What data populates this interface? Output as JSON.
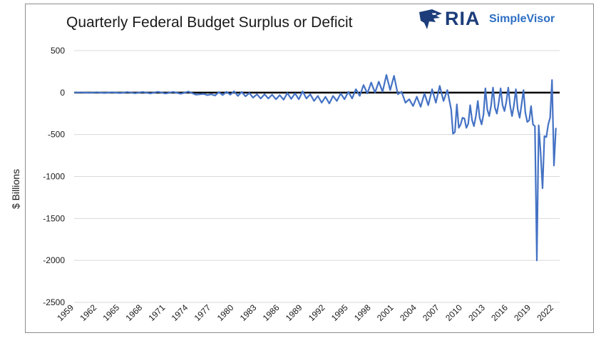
{
  "title": "Quarterly Federal Budget Surplus or Deficit",
  "logo": {
    "brand": "RIA",
    "product": "SimpleVisor",
    "icon": "eagle-head-icon"
  },
  "colors": {
    "series": "#4472C4",
    "zero_line": "#000000",
    "grid": "#d9d9d9",
    "brand": "#1c3d7a",
    "brand_product": "#2e6fc4"
  },
  "chart_data": {
    "type": "line",
    "title": "Quarterly Federal Budget Surplus or Deficit",
    "xlabel": "",
    "ylabel": "$ Billions",
    "ylim": [
      -2500,
      500
    ],
    "xlim": [
      1959,
      2022.75
    ],
    "yticks": [
      "500",
      "0",
      "-500",
      "-1000",
      "-1500",
      "-2000",
      "-2500"
    ],
    "xticks": [
      "1959",
      "1962",
      "1965",
      "1968",
      "1971",
      "1974",
      "1977",
      "1980",
      "1983",
      "1986",
      "1989",
      "1992",
      "1995",
      "1998",
      "2001",
      "2004",
      "2007",
      "2010",
      "2013",
      "2016",
      "2019",
      "2022"
    ],
    "grid": true,
    "legend": "none",
    "series": [
      {
        "points": [
          [
            1959,
            0
          ],
          [
            1960,
            3
          ],
          [
            1961,
            -3
          ],
          [
            1962,
            4
          ],
          [
            1963,
            -5
          ],
          [
            1964,
            4
          ],
          [
            1965,
            -6
          ],
          [
            1966,
            6
          ],
          [
            1967,
            -8
          ],
          [
            1968,
            8
          ],
          [
            1969,
            -10
          ],
          [
            1970,
            10
          ],
          [
            1971,
            -12
          ],
          [
            1972,
            9
          ],
          [
            1973,
            -14
          ],
          [
            1974,
            12
          ],
          [
            1975,
            -25
          ],
          [
            1976,
            -15
          ],
          [
            1976.5,
            -30
          ],
          [
            1977,
            -20
          ],
          [
            1977.5,
            -35
          ],
          [
            1978,
            5
          ],
          [
            1978.5,
            -30
          ],
          [
            1979,
            10
          ],
          [
            1979.5,
            -25
          ],
          [
            1980,
            15
          ],
          [
            1980.5,
            -40
          ],
          [
            1981,
            8
          ],
          [
            1981.5,
            -45
          ],
          [
            1982,
            -5
          ],
          [
            1982.5,
            -60
          ],
          [
            1983,
            -20
          ],
          [
            1983.5,
            -70
          ],
          [
            1984,
            -20
          ],
          [
            1984.5,
            -70
          ],
          [
            1985,
            -25
          ],
          [
            1985.5,
            -80
          ],
          [
            1986,
            -30
          ],
          [
            1986.5,
            -85
          ],
          [
            1987,
            -5
          ],
          [
            1987.5,
            -75
          ],
          [
            1988,
            -10
          ],
          [
            1988.5,
            -80
          ],
          [
            1989,
            15
          ],
          [
            1989.5,
            -70
          ],
          [
            1990,
            -20
          ],
          [
            1990.5,
            -100
          ],
          [
            1991,
            -40
          ],
          [
            1991.5,
            -120
          ],
          [
            1992,
            -50
          ],
          [
            1992.5,
            -130
          ],
          [
            1993,
            -40
          ],
          [
            1993.5,
            -100
          ],
          [
            1994,
            -10
          ],
          [
            1994.5,
            -80
          ],
          [
            1995,
            10
          ],
          [
            1995.5,
            -70
          ],
          [
            1996,
            40
          ],
          [
            1996.5,
            -40
          ],
          [
            1997,
            90
          ],
          [
            1997.5,
            -10
          ],
          [
            1998,
            120
          ],
          [
            1998.5,
            0
          ],
          [
            1999,
            130
          ],
          [
            1999.5,
            10
          ],
          [
            2000,
            210
          ],
          [
            2000.5,
            30
          ],
          [
            2001,
            200
          ],
          [
            2001.5,
            -20
          ],
          [
            2002,
            10
          ],
          [
            2002.5,
            -120
          ],
          [
            2003,
            -80
          ],
          [
            2003.5,
            -160
          ],
          [
            2004,
            -50
          ],
          [
            2004.5,
            -170
          ],
          [
            2005,
            -10
          ],
          [
            2005.5,
            -150
          ],
          [
            2006,
            40
          ],
          [
            2006.5,
            -120
          ],
          [
            2007,
            80
          ],
          [
            2007.5,
            -100
          ],
          [
            2008,
            30
          ],
          [
            2008.5,
            -200
          ],
          [
            2008.75,
            -490
          ],
          [
            2009,
            -470
          ],
          [
            2009.25,
            -140
          ],
          [
            2009.5,
            -420
          ],
          [
            2009.75,
            -380
          ],
          [
            2010,
            -300
          ],
          [
            2010.25,
            -310
          ],
          [
            2010.5,
            -420
          ],
          [
            2010.75,
            -370
          ],
          [
            2011,
            -150
          ],
          [
            2011.25,
            -330
          ],
          [
            2011.5,
            -400
          ],
          [
            2011.75,
            -280
          ],
          [
            2012,
            -100
          ],
          [
            2012.25,
            -300
          ],
          [
            2012.5,
            -380
          ],
          [
            2012.75,
            -260
          ],
          [
            2013,
            50
          ],
          [
            2013.25,
            -200
          ],
          [
            2013.5,
            -280
          ],
          [
            2013.75,
            -150
          ],
          [
            2014,
            60
          ],
          [
            2014.25,
            -180
          ],
          [
            2014.5,
            -250
          ],
          [
            2014.75,
            -120
          ],
          [
            2015,
            50
          ],
          [
            2015.25,
            -150
          ],
          [
            2015.5,
            -220
          ],
          [
            2015.75,
            -110
          ],
          [
            2016,
            60
          ],
          [
            2016.25,
            -160
          ],
          [
            2016.5,
            -280
          ],
          [
            2016.75,
            -150
          ],
          [
            2017,
            40
          ],
          [
            2017.25,
            -200
          ],
          [
            2017.5,
            -300
          ],
          [
            2017.75,
            -140
          ],
          [
            2018,
            30
          ],
          [
            2018.25,
            -240
          ],
          [
            2018.5,
            -350
          ],
          [
            2018.75,
            -330
          ],
          [
            2019,
            -160
          ],
          [
            2019.25,
            -380
          ],
          [
            2019.5,
            -400
          ],
          [
            2019.75,
            -2000
          ],
          [
            2020,
            -390
          ],
          [
            2020.25,
            -720
          ],
          [
            2020.5,
            -1140
          ],
          [
            2020.75,
            -520
          ],
          [
            2021,
            -530
          ],
          [
            2021.25,
            -380
          ],
          [
            2021.5,
            -300
          ],
          [
            2021.75,
            150
          ],
          [
            2022,
            -870
          ],
          [
            2022.25,
            -420
          ]
        ]
      }
    ]
  }
}
